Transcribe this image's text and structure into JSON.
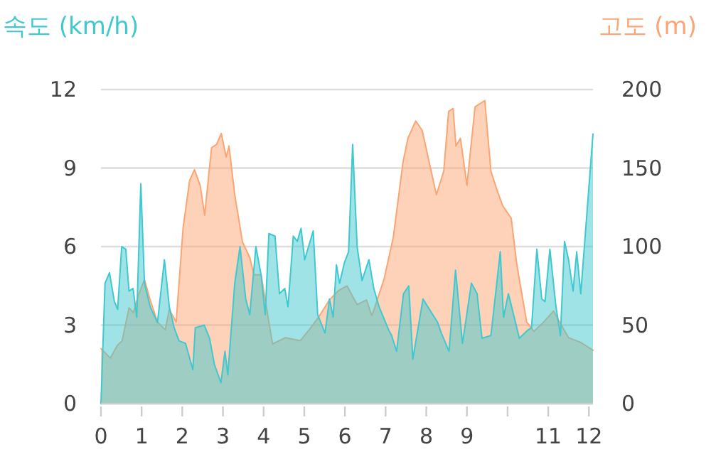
{
  "chart_data": {
    "type": "area",
    "ylabel": "속도 (km/h)",
    "y2label": "고도 (m)",
    "xlim": [
      0,
      12.1
    ],
    "xticks": [
      0,
      1,
      2,
      3,
      4,
      5,
      6,
      7,
      8,
      9,
      {
        "value": 10,
        "label": null
      },
      11,
      12
    ],
    "ylim": [
      0,
      12
    ],
    "yticks": [
      0,
      3,
      6,
      9,
      12
    ],
    "y2lim": [
      0,
      200
    ],
    "y2ticks": [
      0,
      50,
      100,
      150,
      200
    ],
    "grid": "y",
    "series": [
      {
        "axis": "y2",
        "color": "#fba574",
        "x": [
          0,
          0.23,
          0.4,
          0.52,
          0.69,
          0.8,
          0.92,
          1.07,
          1.21,
          1.39,
          1.58,
          1.68,
          1.85,
          2.02,
          2.18,
          2.3,
          2.44,
          2.55,
          2.72,
          2.84,
          2.96,
          3.08,
          3.15,
          3.29,
          3.48,
          3.66,
          3.76,
          3.94,
          4.04,
          4.22,
          4.54,
          4.9,
          5.12,
          5.35,
          5.62,
          5.84,
          6.05,
          6.3,
          6.53,
          6.66,
          6.73,
          6.96,
          7.19,
          7.43,
          7.55,
          7.74,
          7.9,
          8.07,
          8.25,
          8.43,
          8.55,
          8.66,
          8.73,
          8.84,
          9.0,
          9.2,
          9.44,
          9.59,
          9.74,
          9.88,
          10.09,
          10.23,
          10.47,
          10.65,
          10.89,
          11.13,
          11.3,
          11.5,
          11.8,
          12.1
        ],
        "values": [
          35,
          29,
          37,
          40,
          61,
          58,
          69,
          79,
          66,
          52,
          47,
          60,
          52,
          112,
          142,
          149,
          139,
          120,
          163,
          165,
          172,
          157,
          164,
          133,
          103,
          93,
          82,
          82,
          66,
          38,
          42,
          40,
          47,
          55,
          66,
          72,
          75,
          63,
          66,
          56,
          61,
          79,
          106,
          154,
          169,
          180,
          174,
          154,
          133,
          148,
          186,
          188,
          164,
          169,
          139,
          189,
          193,
          148,
          136,
          126,
          118,
          88,
          52,
          46,
          52,
          59,
          51,
          42,
          39,
          34
        ]
      },
      {
        "axis": "y",
        "color": "#3fc8d0",
        "x": [
          0,
          0.1,
          0.21,
          0.33,
          0.41,
          0.51,
          0.61,
          0.69,
          0.79,
          0.88,
          0.98,
          1.07,
          1.21,
          1.39,
          1.56,
          1.68,
          1.8,
          1.92,
          2.08,
          2.26,
          2.32,
          2.54,
          2.67,
          2.79,
          2.95,
          3.05,
          3.12,
          3.29,
          3.42,
          3.56,
          3.66,
          3.81,
          3.94,
          4.04,
          4.13,
          4.28,
          4.39,
          4.52,
          4.6,
          4.73,
          4.83,
          4.92,
          5.01,
          5.22,
          5.33,
          5.51,
          5.62,
          5.71,
          5.79,
          5.87,
          5.99,
          6.09,
          6.19,
          6.3,
          6.42,
          6.59,
          6.71,
          6.84,
          7.08,
          7.15,
          7.27,
          7.44,
          7.57,
          7.67,
          7.92,
          8.28,
          8.37,
          8.56,
          8.72,
          8.89,
          9.11,
          9.25,
          9.37,
          9.59,
          9.82,
          9.9,
          10.02,
          10.29,
          10.49,
          10.59,
          10.72,
          10.84,
          10.92,
          11.04,
          11.19,
          11.3,
          11.4,
          11.5,
          11.61,
          11.7,
          11.8,
          12.1
        ],
        "values": [
          0,
          4.6,
          5.0,
          3.9,
          3.6,
          6.0,
          5.9,
          4.3,
          4.4,
          3.3,
          8.4,
          4.6,
          3.7,
          3.1,
          5.5,
          3.7,
          2.9,
          2.4,
          2.3,
          1.3,
          2.9,
          3.0,
          2.5,
          1.5,
          0.8,
          2.0,
          1.1,
          4.6,
          6.0,
          4.0,
          3.4,
          6.0,
          4.9,
          3.4,
          6.5,
          6.4,
          4.2,
          4.4,
          3.7,
          6.4,
          6.2,
          6.7,
          5.5,
          6.6,
          3.4,
          2.7,
          4.0,
          3.3,
          5.3,
          4.6,
          5.4,
          5.8,
          9.9,
          6.0,
          4.7,
          5.5,
          4.4,
          3.7,
          2.8,
          2.6,
          2.0,
          4.2,
          4.5,
          1.7,
          4.0,
          3.1,
          2.7,
          2.0,
          5.1,
          2.3,
          4.6,
          4.2,
          2.5,
          2.6,
          5.8,
          3.3,
          4.2,
          2.5,
          2.8,
          2.9,
          5.9,
          4.0,
          3.9,
          5.9,
          3.7,
          2.6,
          6.2,
          5.5,
          4.3,
          5.8,
          4.2,
          10.3
        ]
      }
    ]
  }
}
